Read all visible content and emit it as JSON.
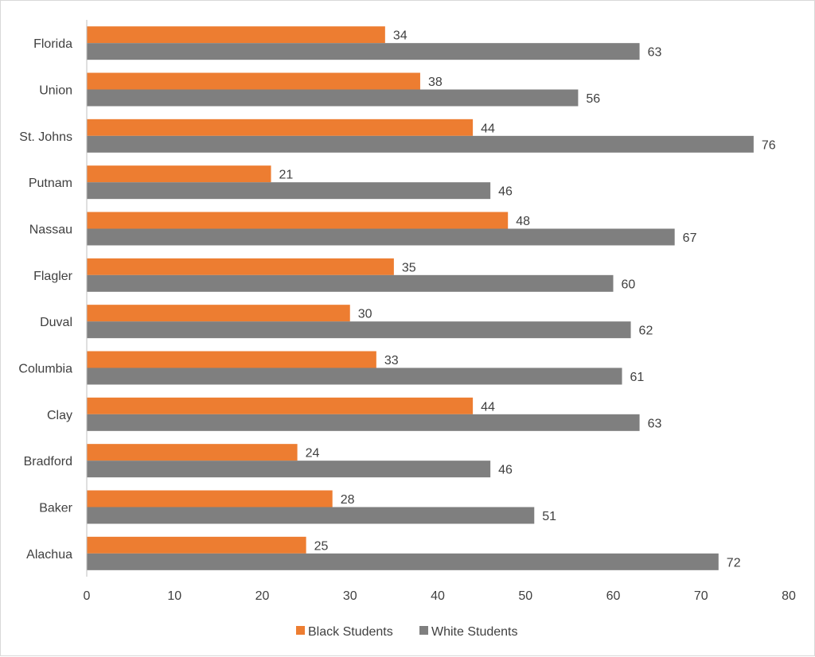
{
  "chart_data": {
    "type": "bar",
    "orientation": "horizontal",
    "categories": [
      "Alachua",
      "Baker",
      "Bradford",
      "Clay",
      "Columbia",
      "Duval",
      "Flagler",
      "Nassau",
      "Putnam",
      "St. Johns",
      "Union",
      "Florida"
    ],
    "series": [
      {
        "name": "Black Students",
        "color": "#ed7d31",
        "values": [
          25,
          28,
          24,
          44,
          33,
          30,
          35,
          48,
          21,
          44,
          38,
          34
        ]
      },
      {
        "name": "White Students",
        "color": "#7f7f7f",
        "values": [
          72,
          51,
          46,
          63,
          61,
          62,
          60,
          67,
          46,
          76,
          56,
          63
        ]
      }
    ],
    "xlim": [
      0,
      80
    ],
    "x_ticks": [
      0,
      10,
      20,
      30,
      40,
      50,
      60,
      70,
      80
    ],
    "title": "",
    "xlabel": "",
    "ylabel": "",
    "grid": false,
    "data_labels": true,
    "legend_position": "bottom"
  }
}
